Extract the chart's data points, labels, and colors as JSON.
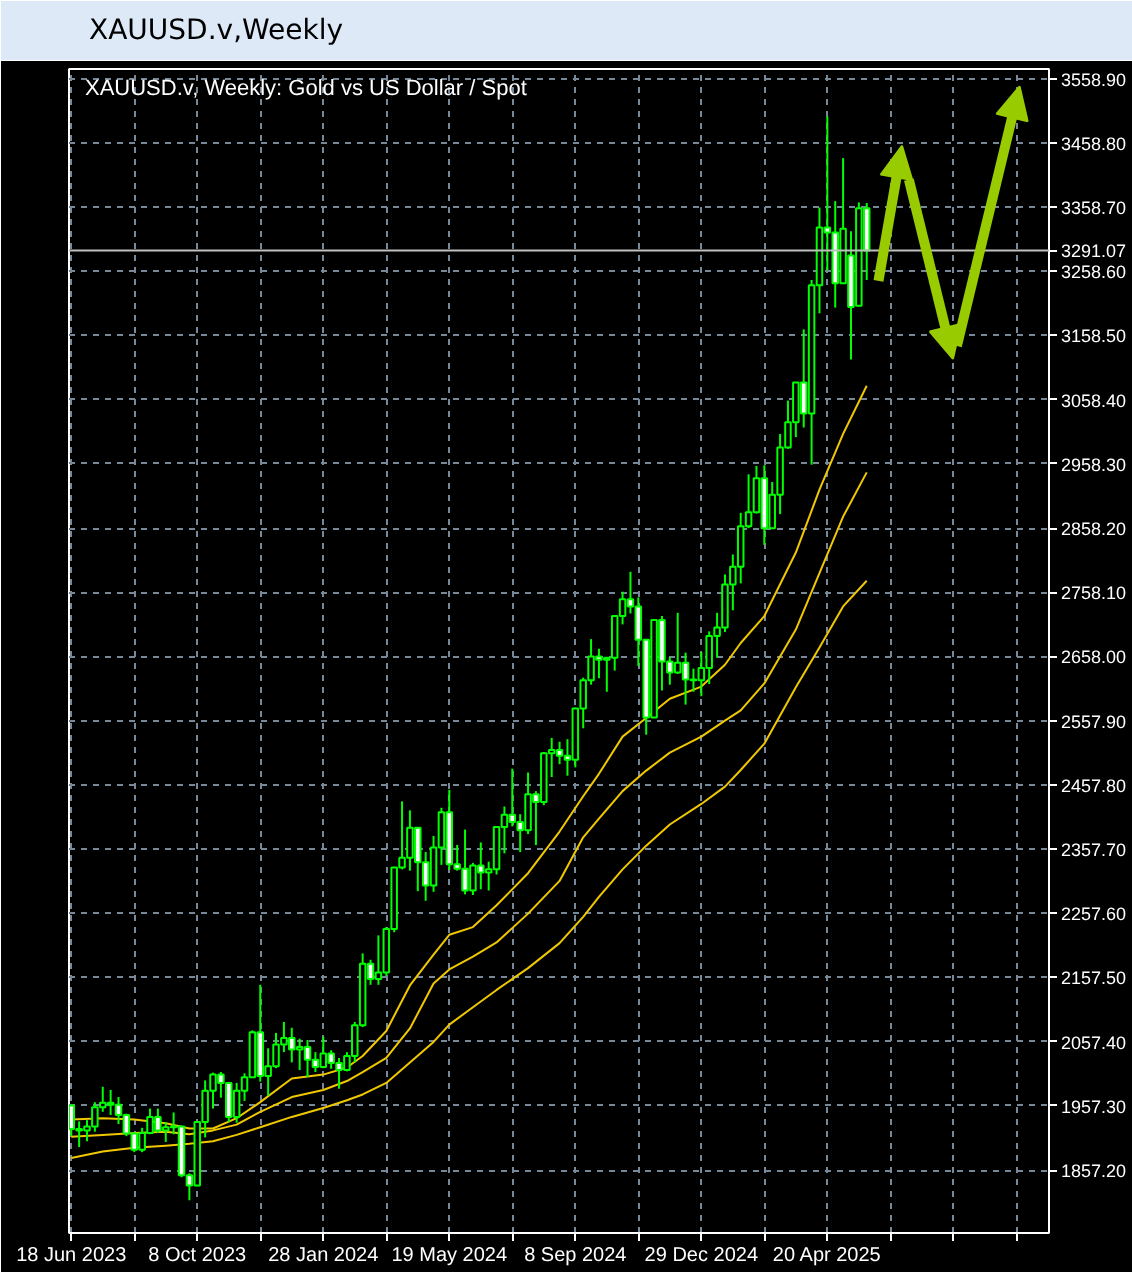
{
  "chart_data": {
    "type": "candlestick",
    "title": "XAUUSD.v,Weekly",
    "subtitle": "XAUUSD.v, Weekly: Gold vs US Dollar / Spot",
    "color": "#00ff00",
    "x": [
      "2023-06-18",
      "2023-06-25",
      "2023-07-02",
      "2023-07-09",
      "2023-07-16",
      "2023-07-23",
      "2023-07-30",
      "2023-08-06",
      "2023-08-13",
      "2023-08-20",
      "2023-08-27",
      "2023-09-03",
      "2023-09-10",
      "2023-09-17",
      "2023-09-24",
      "2023-10-01",
      "2023-10-08",
      "2023-10-15",
      "2023-10-22",
      "2023-10-29",
      "2023-11-05",
      "2023-11-12",
      "2023-11-19",
      "2023-11-26",
      "2023-12-03",
      "2023-12-10",
      "2023-12-17",
      "2023-12-24",
      "2023-12-31",
      "2024-01-07",
      "2024-01-14",
      "2024-01-21",
      "2024-01-28",
      "2024-02-04",
      "2024-02-11",
      "2024-02-18",
      "2024-02-25",
      "2024-03-03",
      "2024-03-10",
      "2024-03-17",
      "2024-03-24",
      "2024-03-31",
      "2024-04-07",
      "2024-04-14",
      "2024-04-21",
      "2024-04-28",
      "2024-05-05",
      "2024-05-12",
      "2024-05-19",
      "2024-05-26",
      "2024-06-02",
      "2024-06-09",
      "2024-06-16",
      "2024-06-23",
      "2024-06-30",
      "2024-07-07",
      "2024-07-14",
      "2024-07-21",
      "2024-07-28",
      "2024-08-04",
      "2024-08-11",
      "2024-08-18",
      "2024-08-25",
      "2024-09-01",
      "2024-09-08",
      "2024-09-15",
      "2024-09-22",
      "2024-09-29",
      "2024-10-06",
      "2024-10-13",
      "2024-10-20",
      "2024-10-27",
      "2024-11-03",
      "2024-11-10",
      "2024-11-17",
      "2024-11-24",
      "2024-12-01",
      "2024-12-08",
      "2024-12-15",
      "2024-12-22",
      "2024-12-29",
      "2025-01-05",
      "2025-01-12",
      "2025-01-19",
      "2025-01-26",
      "2025-02-02",
      "2025-02-09",
      "2025-02-16",
      "2025-02-23",
      "2025-03-02",
      "2025-03-09",
      "2025-03-16",
      "2025-03-23",
      "2025-03-30",
      "2025-04-06",
      "2025-04-13",
      "2025-04-20",
      "2025-04-27",
      "2025-05-04",
      "2025-05-11",
      "2025-05-18",
      "2025-05-25"
    ],
    "ohlc": [
      [
        1958,
        1959,
        1910,
        1921
      ],
      [
        1921,
        1933,
        1893,
        1919
      ],
      [
        1919,
        1935,
        1902,
        1925
      ],
      [
        1925,
        1963,
        1917,
        1955
      ],
      [
        1955,
        1987,
        1948,
        1962
      ],
      [
        1962,
        1982,
        1943,
        1959
      ],
      [
        1959,
        1971,
        1929,
        1943
      ],
      [
        1943,
        1945,
        1910,
        1914
      ],
      [
        1914,
        1916,
        1885,
        1889
      ],
      [
        1889,
        1923,
        1885,
        1915
      ],
      [
        1915,
        1953,
        1913,
        1940
      ],
      [
        1940,
        1953,
        1915,
        1919
      ],
      [
        1919,
        1932,
        1901,
        1924
      ],
      [
        1924,
        1947,
        1913,
        1925
      ],
      [
        1925,
        1925,
        1846,
        1849
      ],
      [
        1849,
        1852,
        1810,
        1833
      ],
      [
        1833,
        1933,
        1832,
        1932
      ],
      [
        1932,
        1997,
        1908,
        1981
      ],
      [
        1981,
        2009,
        1953,
        2006
      ],
      [
        2006,
        2010,
        1970,
        1993
      ],
      [
        1993,
        1993,
        1932,
        1940
      ],
      [
        1940,
        1993,
        1931,
        1981
      ],
      [
        1981,
        2008,
        1965,
        2002
      ],
      [
        2002,
        2075,
        2001,
        2072
      ],
      [
        2072,
        2146,
        1995,
        2004
      ],
      [
        2004,
        2047,
        1973,
        2019
      ],
      [
        2019,
        2071,
        2016,
        2053
      ],
      [
        2053,
        2088,
        2041,
        2063
      ],
      [
        2063,
        2079,
        2025,
        2045
      ],
      [
        2045,
        2062,
        2013,
        2049
      ],
      [
        2049,
        2060,
        2002,
        2029
      ],
      [
        2029,
        2041,
        2010,
        2018
      ],
      [
        2018,
        2065,
        2016,
        2039
      ],
      [
        2039,
        2044,
        2015,
        2024
      ],
      [
        2024,
        2032,
        1984,
        2013
      ],
      [
        2013,
        2041,
        2011,
        2035
      ],
      [
        2035,
        2088,
        2025,
        2083
      ],
      [
        2083,
        2195,
        2080,
        2179
      ],
      [
        2179,
        2185,
        2146,
        2155
      ],
      [
        2155,
        2223,
        2146,
        2165
      ],
      [
        2165,
        2236,
        2160,
        2233
      ],
      [
        2233,
        2330,
        2228,
        2329
      ],
      [
        2329,
        2432,
        2326,
        2344
      ],
      [
        2344,
        2418,
        2324,
        2391
      ],
      [
        2391,
        2392,
        2292,
        2337
      ],
      [
        2337,
        2353,
        2277,
        2301
      ],
      [
        2301,
        2378,
        2291,
        2360
      ],
      [
        2360,
        2422,
        2333,
        2415
      ],
      [
        2415,
        2450,
        2325,
        2334
      ],
      [
        2334,
        2364,
        2324,
        2327
      ],
      [
        2327,
        2388,
        2287,
        2293
      ],
      [
        2293,
        2336,
        2286,
        2332
      ],
      [
        2332,
        2368,
        2295,
        2321
      ],
      [
        2321,
        2338,
        2293,
        2326
      ],
      [
        2326,
        2392,
        2318,
        2392
      ],
      [
        2392,
        2424,
        2351,
        2411
      ],
      [
        2411,
        2483,
        2393,
        2400
      ],
      [
        2400,
        2412,
        2353,
        2387
      ],
      [
        2387,
        2477,
        2381,
        2443
      ],
      [
        2443,
        2448,
        2364,
        2431
      ],
      [
        2431,
        2509,
        2426,
        2507
      ],
      [
        2507,
        2531,
        2470,
        2512
      ],
      [
        2512,
        2525,
        2490,
        2503
      ],
      [
        2503,
        2529,
        2472,
        2497
      ],
      [
        2497,
        2578,
        2485,
        2577
      ],
      [
        2577,
        2625,
        2546,
        2621
      ],
      [
        2621,
        2685,
        2614,
        2658
      ],
      [
        2658,
        2670,
        2624,
        2653
      ],
      [
        2653,
        2657,
        2603,
        2656
      ],
      [
        2656,
        2722,
        2636,
        2721
      ],
      [
        2721,
        2759,
        2708,
        2747
      ],
      [
        2747,
        2790,
        2725,
        2736
      ],
      [
        2736,
        2750,
        2643,
        2684
      ],
      [
        2684,
        2685,
        2536,
        2563
      ],
      [
        2563,
        2716,
        2563,
        2715
      ],
      [
        2715,
        2721,
        2605,
        2650
      ],
      [
        2650,
        2657,
        2614,
        2633
      ],
      [
        2633,
        2726,
        2631,
        2648
      ],
      [
        2648,
        2664,
        2583,
        2622
      ],
      [
        2622,
        2639,
        2603,
        2621
      ],
      [
        2621,
        2665,
        2596,
        2640
      ],
      [
        2640,
        2697,
        2615,
        2690
      ],
      [
        2690,
        2726,
        2656,
        2703
      ],
      [
        2703,
        2786,
        2696,
        2770
      ],
      [
        2770,
        2817,
        2730,
        2798
      ],
      [
        2798,
        2882,
        2772,
        2861
      ],
      [
        2861,
        2942,
        2858,
        2883
      ],
      [
        2883,
        2955,
        2881,
        2936
      ],
      [
        2936,
        2956,
        2832,
        2858
      ],
      [
        2858,
        2930,
        2857,
        2910
      ],
      [
        2910,
        3005,
        2880,
        2984
      ],
      [
        2984,
        3057,
        2982,
        3023
      ],
      [
        3023,
        3086,
        3000,
        3085
      ],
      [
        3085,
        3168,
        3015,
        3037
      ],
      [
        3037,
        3245,
        2957,
        3237
      ],
      [
        3237,
        3358,
        3193,
        3327
      ],
      [
        3327,
        3500,
        3260,
        3319
      ],
      [
        3319,
        3368,
        3202,
        3240
      ],
      [
        3240,
        3435,
        3239,
        3325
      ],
      [
        3283,
        3321,
        3121,
        3203
      ],
      [
        3205,
        3366,
        3205,
        3357
      ],
      [
        3357,
        3365,
        3245,
        3291.07
      ]
    ],
    "series": [
      {
        "type": "line",
        "color": "#f0c800",
        "x": [
          "2023-06-18",
          "2023-07-16",
          "2023-08-13",
          "2023-09-10",
          "2023-10-01",
          "2023-10-22",
          "2023-11-12",
          "2023-12-03",
          "2023-12-31",
          "2024-01-28",
          "2024-02-18",
          "2024-03-03",
          "2024-03-24",
          "2024-04-14",
          "2024-05-05",
          "2024-05-19",
          "2024-06-09",
          "2024-06-30",
          "2024-07-28",
          "2024-08-25",
          "2024-09-15",
          "2024-09-29",
          "2024-10-20",
          "2024-11-10",
          "2024-12-01",
          "2024-12-29",
          "2025-01-19",
          "2025-02-02",
          "2025-02-23",
          "2025-03-23",
          "2025-04-13",
          "2025-05-04",
          "2025-05-25"
        ],
        "values": [
          1936,
          1938,
          1936,
          1930,
          1922,
          1922,
          1938,
          1963,
          2000,
          2006,
          2017,
          2035,
          2074,
          2145,
          2193,
          2224,
          2236,
          2270,
          2320,
          2385,
          2440,
          2475,
          2533,
          2562,
          2592,
          2611,
          2645,
          2679,
          2721,
          2820,
          2918,
          3005,
          3080
        ]
      },
      {
        "type": "line",
        "color": "#f0c800",
        "x": [
          "2023-06-18",
          "2023-07-16",
          "2023-08-13",
          "2023-09-10",
          "2023-10-01",
          "2023-10-22",
          "2023-11-12",
          "2023-12-03",
          "2023-12-31",
          "2024-01-28",
          "2024-02-18",
          "2024-03-03",
          "2024-03-24",
          "2024-04-14",
          "2024-05-05",
          "2024-05-19",
          "2024-06-09",
          "2024-06-30",
          "2024-07-28",
          "2024-08-25",
          "2024-09-15",
          "2024-09-29",
          "2024-10-20",
          "2024-11-10",
          "2024-12-01",
          "2024-12-29",
          "2025-01-19",
          "2025-02-02",
          "2025-02-23",
          "2025-03-23",
          "2025-04-13",
          "2025-05-04",
          "2025-05-25"
        ],
        "values": [
          1909,
          1912,
          1915,
          1917,
          1913,
          1919,
          1928,
          1948,
          1971,
          1982,
          1996,
          2010,
          2032,
          2078,
          2148,
          2170,
          2190,
          2212,
          2257,
          2308,
          2376,
          2405,
          2448,
          2480,
          2508,
          2533,
          2558,
          2574,
          2616,
          2700,
          2788,
          2876,
          2945
        ]
      },
      {
        "type": "line",
        "color": "#f0c800",
        "x": [
          "2023-06-18",
          "2023-07-16",
          "2023-08-13",
          "2023-09-10",
          "2023-10-01",
          "2023-10-22",
          "2023-11-12",
          "2023-12-03",
          "2023-12-31",
          "2024-01-28",
          "2024-02-18",
          "2024-03-03",
          "2024-03-24",
          "2024-04-14",
          "2024-05-05",
          "2024-05-19",
          "2024-06-09",
          "2024-06-30",
          "2024-07-28",
          "2024-08-25",
          "2024-09-15",
          "2024-09-29",
          "2024-10-20",
          "2024-11-10",
          "2024-12-01",
          "2024-12-29",
          "2025-01-19",
          "2025-02-02",
          "2025-02-23",
          "2025-03-23",
          "2025-04-13",
          "2025-05-04",
          "2025-05-25"
        ],
        "values": [
          1876,
          1886,
          1892,
          1895,
          1898,
          1902,
          1912,
          1924,
          1940,
          1954,
          1966,
          1975,
          1993,
          2025,
          2057,
          2084,
          2111,
          2138,
          2172,
          2211,
          2252,
          2283,
          2326,
          2363,
          2396,
          2428,
          2455,
          2481,
          2522,
          2610,
          2672,
          2736,
          2776
        ]
      }
    ],
    "xlim": [
      "2023-06-16",
      "2025-11-03"
    ],
    "ylim": [
      1759,
      3574
    ],
    "xticks": [
      {
        "value": "2023-06-18",
        "label": "18 Jun 2023"
      },
      {
        "value": "2023-08-13",
        "label": null
      },
      {
        "value": "2023-10-08",
        "label": "8 Oct 2023"
      },
      {
        "value": "2023-12-03",
        "label": null
      },
      {
        "value": "2024-01-28",
        "label": "28 Jan 2024"
      },
      {
        "value": "2024-03-24",
        "label": null
      },
      {
        "value": "2024-05-19",
        "label": "19 May 2024"
      },
      {
        "value": "2024-07-14",
        "label": null
      },
      {
        "value": "2024-09-08",
        "label": "8 Sep 2024"
      },
      {
        "value": "2024-11-03",
        "label": null
      },
      {
        "value": "2024-12-29",
        "label": "29 Dec 2024"
      },
      {
        "value": "2025-02-23",
        "label": null
      },
      {
        "value": "2025-04-20",
        "label": "20 Apr 2025"
      },
      {
        "value": "2025-06-15",
        "label": null
      },
      {
        "value": "2025-08-10",
        "label": null
      },
      {
        "value": "2025-10-05",
        "label": null
      }
    ],
    "yticks": [
      {
        "value": 1857.2,
        "label": "1857.20"
      },
      {
        "value": 1957.3,
        "label": "1957.30"
      },
      {
        "value": 2057.4,
        "label": "2057.40"
      },
      {
        "value": 2157.5,
        "label": "2157.50"
      },
      {
        "value": 2257.6,
        "label": "2257.60"
      },
      {
        "value": 2357.7,
        "label": "2357.70"
      },
      {
        "value": 2457.8,
        "label": "2457.80"
      },
      {
        "value": 2557.9,
        "label": "2557.90"
      },
      {
        "value": 2658.0,
        "label": "2658.00"
      },
      {
        "value": 2758.1,
        "label": "2758.10"
      },
      {
        "value": 2858.2,
        "label": "2858.20"
      },
      {
        "value": 2958.3,
        "label": "2958.30"
      },
      {
        "value": 3058.4,
        "label": "3058.40"
      },
      {
        "value": 3158.5,
        "label": "3158.50"
      },
      {
        "value": 3258.6,
        "label": "3258.60"
      },
      {
        "value": 3358.7,
        "label": "3358.70"
      },
      {
        "value": 3458.8,
        "label": "3458.80"
      },
      {
        "value": 3558.9,
        "label": "3558.90"
      }
    ],
    "ref_lines": [
      {
        "axis": "y",
        "value": 3291.07,
        "label": "3291.07",
        "color": "#c0c0c0"
      }
    ],
    "grid": true
  }
}
